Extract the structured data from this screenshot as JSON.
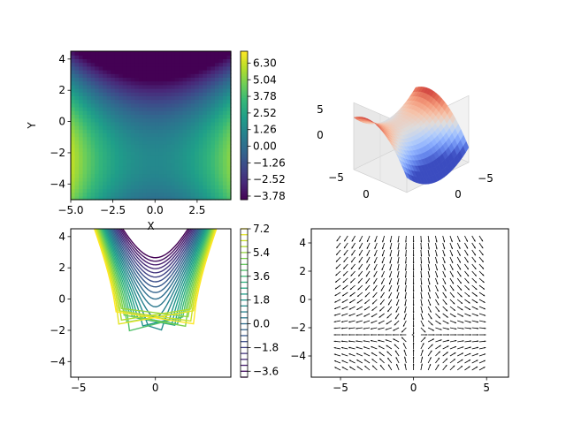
{
  "colors": {
    "viridis": [
      "#440154",
      "#482878",
      "#3e4989",
      "#31688e",
      "#26828e",
      "#1f9e89",
      "#35b779",
      "#6ece58",
      "#b5de2b",
      "#fde725"
    ],
    "coolwarm": [
      "#3b4cc0",
      "#6282ea",
      "#8db0fe",
      "#b8d0f9",
      "#dddcdc",
      "#f5c4ac",
      "#f49a7b",
      "#de604d",
      "#b40426"
    ],
    "quiver": "#000000"
  },
  "chart_data": [
    {
      "id": "heatmap",
      "type": "heatmap",
      "title": "",
      "xlabel": "X",
      "ylabel": "Y",
      "function": "0.2*(x^2 - y^2) - y",
      "xlim": [
        -5,
        4.5
      ],
      "ylim": [
        -5,
        4.5
      ],
      "xticks": [
        "−5.0",
        "−2.5",
        "0.0",
        "2.5"
      ],
      "xtick_values": [
        -5,
        -2.5,
        0,
        2.5
      ],
      "yticks": [
        "−4",
        "−2",
        "0",
        "2",
        "4"
      ],
      "ytick_values": [
        -4,
        -2,
        0,
        2,
        4
      ],
      "colorbar_ticks": [
        "6.30",
        "5.04",
        "3.78",
        "2.52",
        "1.26",
        "0.00",
        "−1.26",
        "−2.52",
        "−3.78"
      ],
      "colorbar_values": [
        6.3,
        5.04,
        3.78,
        2.52,
        1.26,
        0.0,
        -1.26,
        -2.52,
        -3.78
      ],
      "vmin": -4.05,
      "vmax": 7.2,
      "colormap": "viridis"
    },
    {
      "id": "surface3d",
      "type": "surface",
      "title": "",
      "function": "0.2*(x^2 - y^2) - y",
      "colormap": "coolwarm",
      "zticks": [
        "5",
        "0"
      ],
      "xticks": [
        "−5",
        "0"
      ],
      "yticks": [
        "−5"
      ]
    },
    {
      "id": "contour",
      "type": "contour",
      "title": "",
      "function": "0.2*(x^2 - y^2) - y",
      "xlim": [
        -5.5,
        4.9
      ],
      "ylim": [
        -5,
        4.5
      ],
      "xticks": [
        "−5",
        "0"
      ],
      "xtick_values": [
        -5,
        0
      ],
      "yticks": [
        "−4",
        "−2",
        "0",
        "2",
        "4"
      ],
      "ytick_values": [
        -4,
        -2,
        0,
        2,
        4
      ],
      "levels": [
        -4.05,
        -3.6,
        -3.15,
        -2.7,
        -2.25,
        -1.8,
        -1.35,
        -0.9,
        -0.45,
        0.0,
        0.45,
        0.9,
        1.35,
        1.8,
        2.25,
        2.7,
        3.15,
        3.6,
        4.05,
        4.5,
        4.95,
        5.4,
        5.85,
        6.3,
        6.75,
        7.2
      ],
      "colorbar_ticks": [
        "7.2",
        "5.4",
        "3.6",
        "1.8",
        "0.0",
        "−1.8",
        "−3.6"
      ],
      "colorbar_values": [
        7.2,
        5.4,
        3.6,
        1.8,
        0.0,
        -1.8,
        -3.6
      ],
      "vmin": -4.05,
      "vmax": 7.2,
      "colormap": "viridis"
    },
    {
      "id": "quiver",
      "type": "quiver",
      "title": "",
      "field": "gradient of 0.2*(x^2 - y^2) - y",
      "grid_x": [
        -5,
        -4.5,
        -4,
        -3.5,
        -3,
        -2.5,
        -2,
        -1.5,
        -1,
        -0.5,
        0,
        0.5,
        1,
        1.5,
        2,
        2.5,
        3,
        3.5,
        4,
        4.5
      ],
      "grid_y": [
        -5,
        -4.5,
        -4,
        -3.5,
        -3,
        -2.5,
        -2,
        -1.5,
        -1,
        -0.5,
        0,
        0.5,
        1,
        1.5,
        2,
        2.5,
        3,
        3.5,
        4,
        4.5
      ],
      "xlim": [
        -7,
        6.5
      ],
      "ylim": [
        -5.5,
        5
      ],
      "xticks": [
        "−5",
        "0",
        "5"
      ],
      "xtick_values": [
        -5,
        0,
        5
      ],
      "yticks": [
        "−4",
        "−2",
        "0",
        "2",
        "4"
      ],
      "ytick_values": [
        -4,
        -2,
        0,
        2,
        4
      ]
    }
  ]
}
